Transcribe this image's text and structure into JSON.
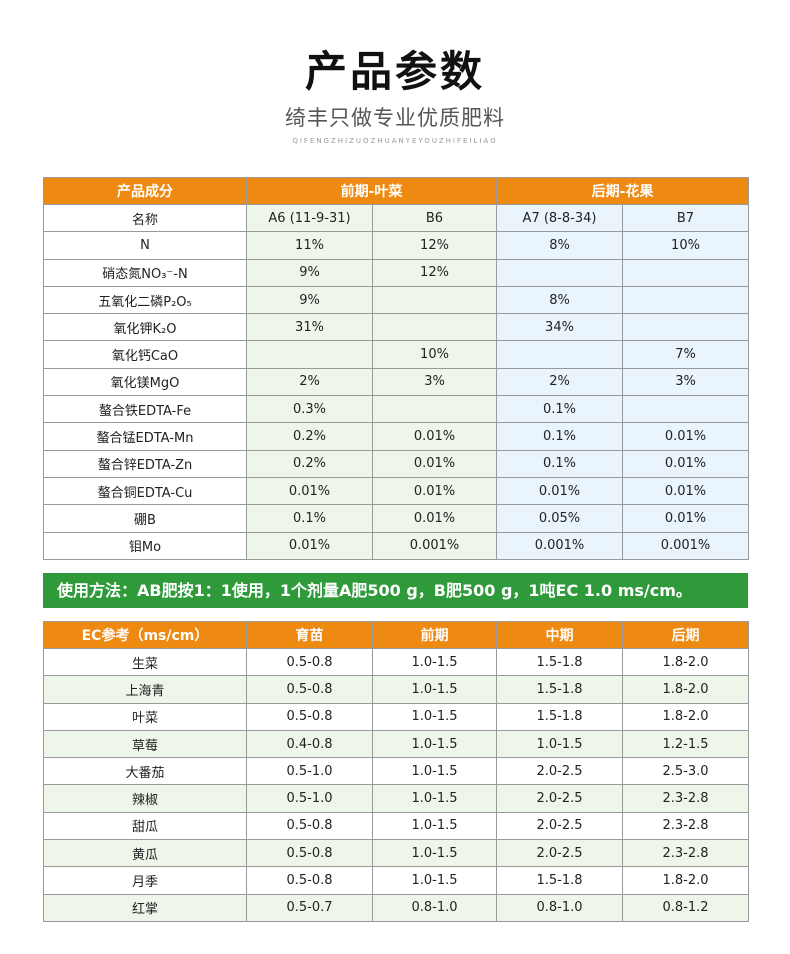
{
  "header": {
    "title": "产品参数",
    "subtitle": "绮丰只做专业优质肥料",
    "pinyin": "QIFENGZHIZUOZHUANYEYOUZHIFEILIAO"
  },
  "params": {
    "col_header": "产品成分",
    "group1": "前期-叶菜",
    "group2": "后期-花果",
    "rows": [
      {
        "name": "名称",
        "a6": "A6 (11-9-31)",
        "b6": "B6",
        "a7": "A7 (8-8-34)",
        "b7": "B7"
      },
      {
        "name": "N",
        "a6": "11%",
        "b6": "12%",
        "a7": "8%",
        "b7": "10%"
      },
      {
        "name": "硝态氮NO₃⁻-N",
        "a6": "9%",
        "b6": "12%",
        "a7": "",
        "b7": ""
      },
      {
        "name": "五氧化二磷P₂O₅",
        "a6": "9%",
        "b6": "",
        "a7": "8%",
        "b7": ""
      },
      {
        "name": "氧化钾K₂O",
        "a6": "31%",
        "b6": "",
        "a7": "34%",
        "b7": ""
      },
      {
        "name": "氧化钙CaO",
        "a6": "",
        "b6": "10%",
        "a7": "",
        "b7": "7%"
      },
      {
        "name": "氧化镁MgO",
        "a6": "2%",
        "b6": "3%",
        "a7": "2%",
        "b7": "3%"
      },
      {
        "name": "螯合铁EDTA-Fe",
        "a6": "0.3%",
        "b6": "",
        "a7": "0.1%",
        "b7": ""
      },
      {
        "name": "螯合锰EDTA-Mn",
        "a6": "0.2%",
        "b6": "0.01%",
        "a7": "0.1%",
        "b7": "0.01%"
      },
      {
        "name": "螯合锌EDTA-Zn",
        "a6": "0.2%",
        "b6": "0.01%",
        "a7": "0.1%",
        "b7": "0.01%"
      },
      {
        "name": "螯合铜EDTA-Cu",
        "a6": "0.01%",
        "b6": "0.01%",
        "a7": "0.01%",
        "b7": "0.01%"
      },
      {
        "name": "硼B",
        "a6": "0.1%",
        "b6": "0.01%",
        "a7": "0.05%",
        "b7": "0.01%"
      },
      {
        "name": "钼Mo",
        "a6": "0.01%",
        "b6": "0.001%",
        "a7": "0.001%",
        "b7": "0.001%"
      }
    ]
  },
  "usage": "使用方法：AB肥按1：1使用，1个剂量A肥500 g，B肥500 g，1吨EC 1.0 ms/cm。",
  "ec": {
    "headers": [
      "EC参考（ms/cm）",
      "育苗",
      "前期",
      "中期",
      "后期"
    ],
    "rows": [
      [
        "生菜",
        "0.5-0.8",
        "1.0-1.5",
        "1.5-1.8",
        "1.8-2.0"
      ],
      [
        "上海青",
        "0.5-0.8",
        "1.0-1.5",
        "1.5-1.8",
        "1.8-2.0"
      ],
      [
        "叶菜",
        "0.5-0.8",
        "1.0-1.5",
        "1.5-1.8",
        "1.8-2.0"
      ],
      [
        "草莓",
        "0.4-0.8",
        "1.0-1.5",
        "1.0-1.5",
        "1.2-1.5"
      ],
      [
        "大番茄",
        "0.5-1.0",
        "1.0-1.5",
        "2.0-2.5",
        "2.5-3.0"
      ],
      [
        "辣椒",
        "0.5-1.0",
        "1.0-1.5",
        "2.0-2.5",
        "2.3-2.8"
      ],
      [
        "甜瓜",
        "0.5-0.8",
        "1.0-1.5",
        "2.0-2.5",
        "2.3-2.8"
      ],
      [
        "黄瓜",
        "0.5-0.8",
        "1.0-1.5",
        "2.0-2.5",
        "2.3-2.8"
      ],
      [
        "月季",
        "0.5-0.8",
        "1.0-1.5",
        "1.5-1.8",
        "1.8-2.0"
      ],
      [
        "红掌",
        "0.5-0.7",
        "0.8-1.0",
        "0.8-1.0",
        "0.8-1.2"
      ]
    ]
  },
  "colors": {
    "header_orange": "#ee8a12",
    "usage_green": "#2f9a3a",
    "cell_green": "#eef6ea",
    "cell_blue": "#e9f4fc"
  }
}
